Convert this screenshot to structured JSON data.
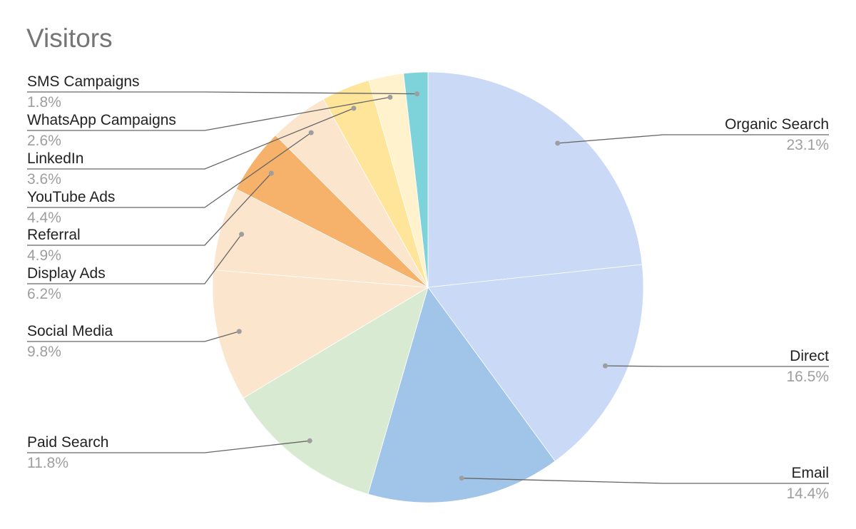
{
  "chart_data": {
    "type": "pie",
    "title": "Visitors",
    "slices": [
      {
        "label": "Organic Search",
        "value": 23.1,
        "pct_label": "23.1%",
        "color": "#c9d9f6"
      },
      {
        "label": "Direct",
        "value": 16.5,
        "pct_label": "16.5%",
        "color": "#c9d9f6"
      },
      {
        "label": "Email",
        "value": 14.4,
        "pct_label": "14.4%",
        "color": "#a1c4e9"
      },
      {
        "label": "Paid Search",
        "value": 11.8,
        "pct_label": "11.8%",
        "color": "#d9ead3"
      },
      {
        "label": "Social Media",
        "value": 9.8,
        "pct_label": "9.8%",
        "color": "#fce5cd"
      },
      {
        "label": "Display Ads",
        "value": 6.2,
        "pct_label": "6.2%",
        "color": "#fce5cd"
      },
      {
        "label": "Referral",
        "value": 4.9,
        "pct_label": "4.9%",
        "color": "#f6b26b"
      },
      {
        "label": "YouTube Ads",
        "value": 4.4,
        "pct_label": "4.4%",
        "color": "#fce5cd"
      },
      {
        "label": "LinkedIn",
        "value": 3.6,
        "pct_label": "3.6%",
        "color": "#ffe599"
      },
      {
        "label": "WhatsApp Campaigns",
        "value": 2.6,
        "pct_label": "2.6%",
        "color": "#fff2cc"
      },
      {
        "label": "SMS Campaigns",
        "value": 1.8,
        "pct_label": "1.8%",
        "color": "#7dd3d9"
      }
    ],
    "start_angle_deg": 0,
    "direction": "clockwise",
    "legend": "none"
  }
}
